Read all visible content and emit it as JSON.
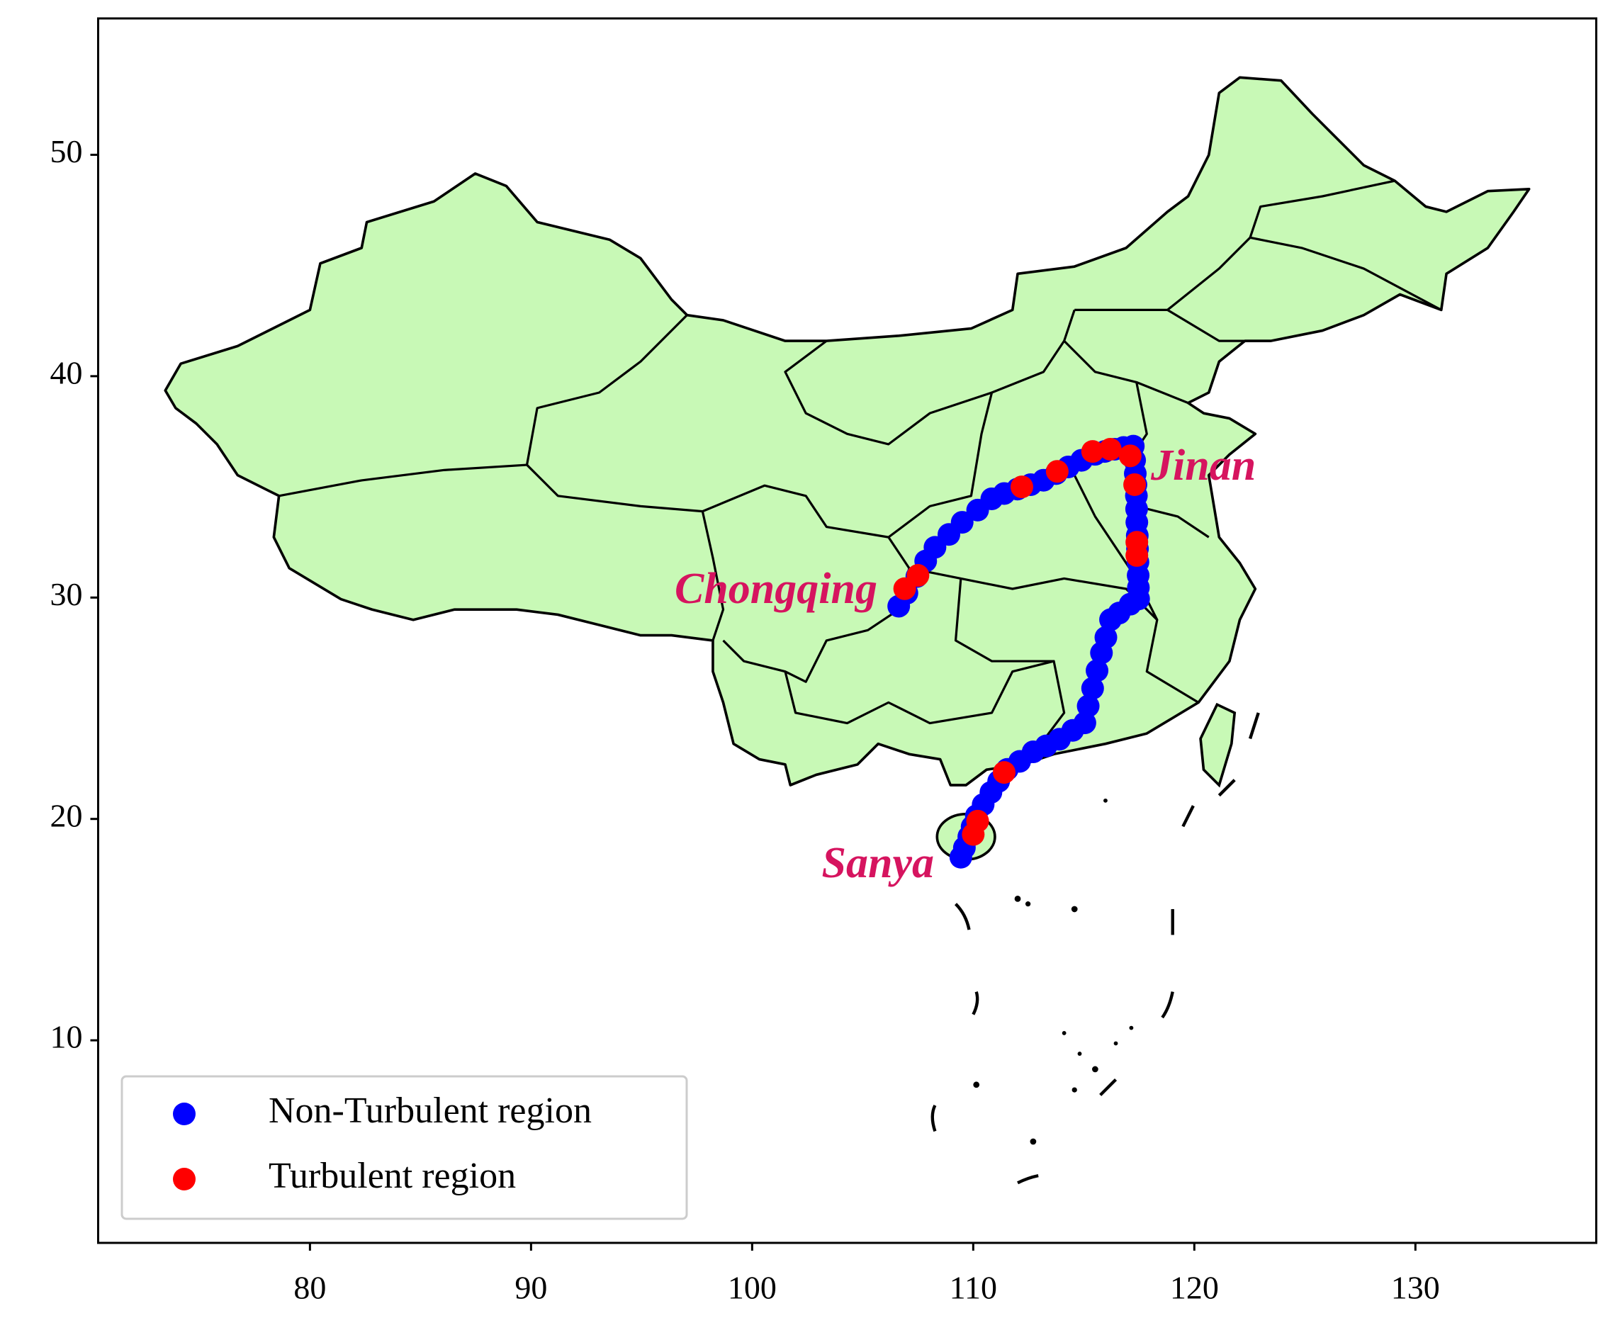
{
  "chart_data": {
    "type": "scatter",
    "xlim": [
      70.42,
      138.18
    ],
    "ylim": [
      0.85,
      56.16
    ],
    "xticks": [
      80,
      90,
      100,
      110,
      120,
      130
    ],
    "yticks": [
      10,
      20,
      30,
      40,
      50
    ],
    "legend": "lower left",
    "annotations": [
      "Chongqing",
      "Jinan",
      "Sanya"
    ],
    "series": [
      {
        "name": "Non-Turbulent region",
        "color": "#0000ff",
        "x": [
          106.63,
          107.0,
          107.45,
          107.85,
          108.27,
          108.9,
          109.5,
          110.2,
          110.84,
          111.4,
          112.0,
          112.6,
          113.18,
          113.75,
          114.3,
          114.9,
          115.51,
          115.95,
          116.4,
          116.8,
          117.24,
          117.3,
          117.33,
          117.36,
          117.38,
          117.39,
          117.4,
          117.42,
          117.43,
          117.45,
          117.46,
          117.47,
          117.48,
          117.1,
          116.6,
          116.21,
          116.0,
          115.8,
          115.6,
          115.4,
          115.2,
          115.05,
          114.5,
          113.9,
          113.3,
          112.71,
          112.1,
          111.54,
          111.15,
          110.8,
          110.45,
          110.14,
          109.95,
          109.8,
          109.6,
          109.44
        ],
        "values": [
          29.61,
          30.2,
          30.95,
          31.65,
          32.27,
          32.85,
          33.4,
          33.95,
          34.46,
          34.7,
          34.9,
          35.1,
          35.3,
          35.6,
          35.9,
          36.2,
          36.47,
          36.6,
          36.7,
          36.78,
          36.84,
          36.2,
          35.6,
          35.1,
          34.6,
          34.0,
          33.4,
          32.8,
          32.2,
          31.6,
          31.0,
          30.45,
          29.94,
          29.7,
          29.3,
          29.0,
          28.2,
          27.5,
          26.7,
          25.9,
          25.1,
          24.34,
          24.0,
          23.6,
          23.3,
          23.03,
          22.6,
          22.24,
          21.7,
          21.2,
          20.65,
          20.14,
          19.65,
          19.2,
          18.7,
          18.27
        ]
      },
      {
        "name": "Turbulent region",
        "color": "#ff0000",
        "x": [
          106.9,
          107.5,
          112.2,
          113.8,
          115.4,
          116.2,
          117.1,
          117.3,
          117.4,
          117.4,
          111.4,
          110.2,
          110.0
        ],
        "values": [
          30.4,
          31.0,
          35.0,
          35.7,
          36.6,
          36.7,
          36.4,
          35.1,
          32.5,
          31.9,
          22.1,
          19.9,
          19.3
        ]
      }
    ]
  }
}
